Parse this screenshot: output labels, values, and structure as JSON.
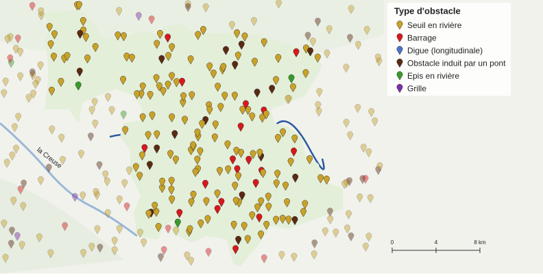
{
  "legend": {
    "title": "Type d'obstacle",
    "items": [
      {
        "label": "Seuil en rivière",
        "color": "#c9a227"
      },
      {
        "label": "Barrage",
        "color": "#d7191c"
      },
      {
        "label": "Digue (longitudinale)",
        "color": "#4a74c9"
      },
      {
        "label": "Obstacle induit par un pont",
        "color": "#5a2a12"
      },
      {
        "label": "Epis en rivière",
        "color": "#3a9a2a"
      },
      {
        "label": "Grille",
        "color": "#7b2fa8"
      }
    ]
  },
  "river_label": "la Creuse",
  "scale": {
    "labels": [
      "0",
      "4",
      "8 km"
    ]
  }
}
